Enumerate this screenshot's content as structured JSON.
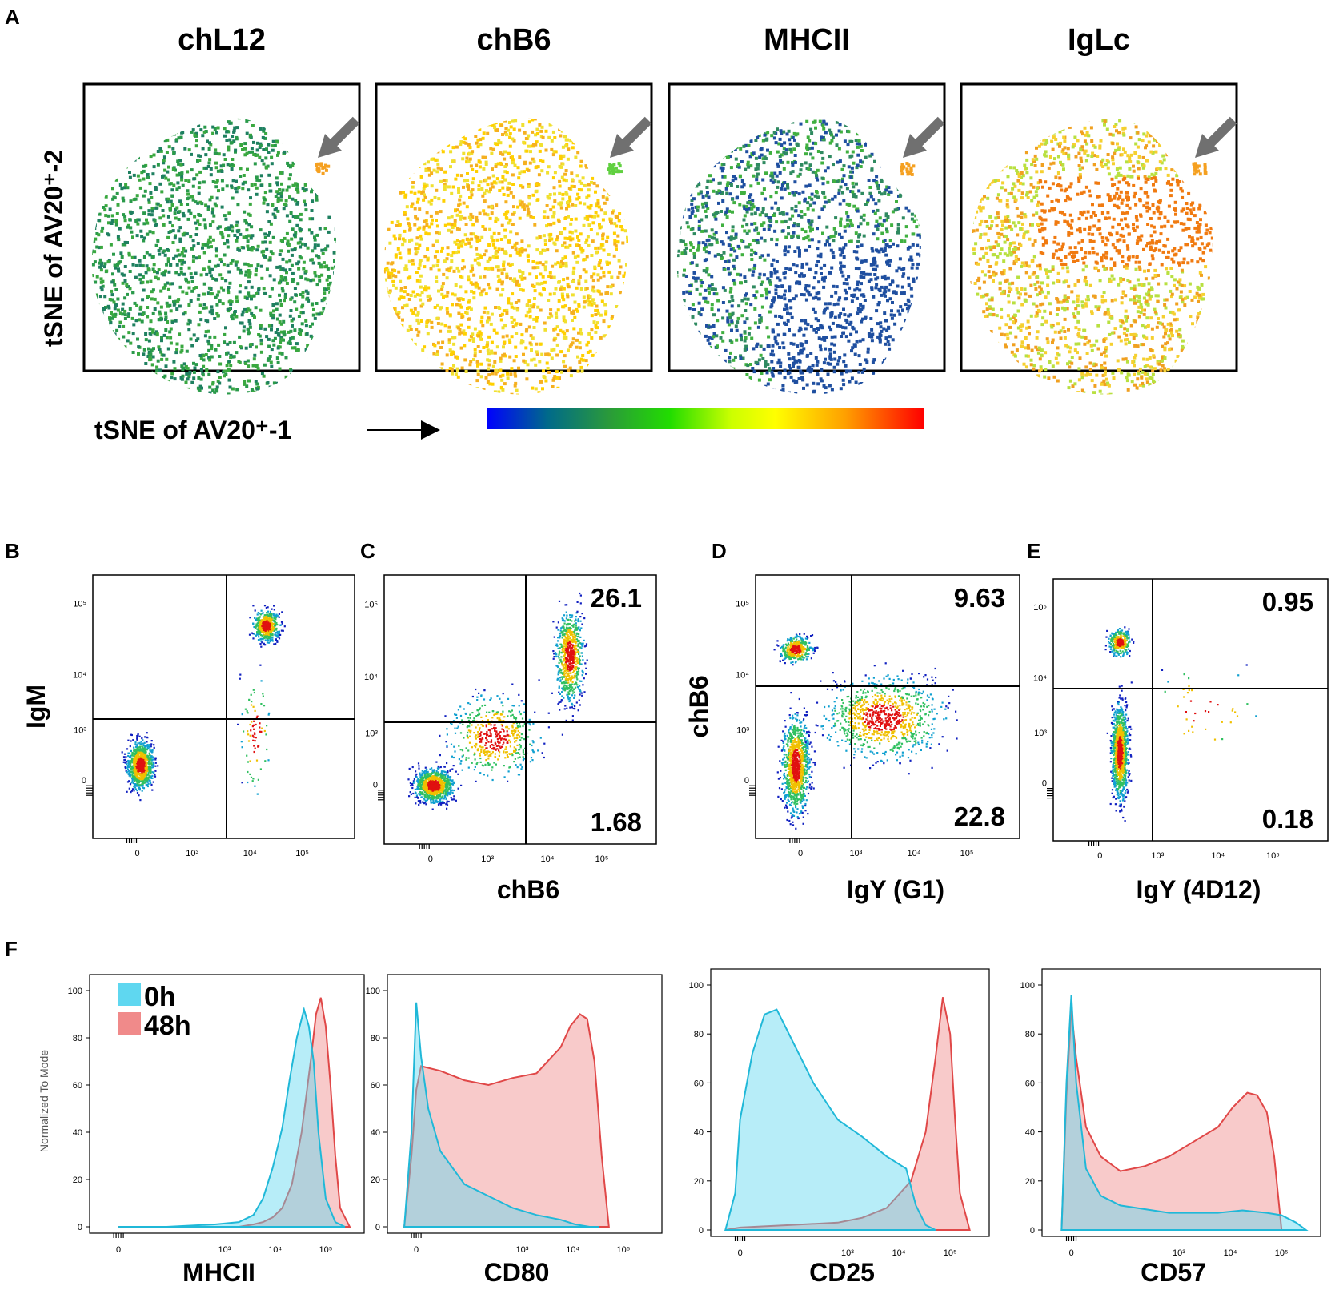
{
  "colors": {
    "gradient": [
      "#0000ff",
      "#006a8a",
      "#2a9a3a",
      "#22dd00",
      "#ccff00",
      "#ffff00",
      "#ffa000",
      "#ff0000"
    ],
    "arrow": "#707070",
    "hist_0h": "#5fd7f0",
    "hist_48h": "#f08a8a"
  },
  "panel_labels": {
    "A": "A",
    "B": "B",
    "C": "C",
    "D": "D",
    "E": "E",
    "F": "F"
  },
  "panelA": {
    "titles": [
      "chL12",
      "chB6",
      "MHCII",
      "IgLc"
    ],
    "ylabel": "tSNE of AV20⁺-2",
    "xlabel": "tSNE of AV20⁺-1",
    "colorbar": "blue to red"
  },
  "flow": {
    "ticks_x": [
      "0",
      "10³",
      "10⁴",
      "10⁵"
    ],
    "ticks_y": [
      "0",
      "10³",
      "10⁴",
      "10⁵"
    ],
    "plots": [
      {
        "id": "B",
        "xlabel": "",
        "ylabel": "IgM",
        "q_ur": "",
        "q_lr": ""
      },
      {
        "id": "C",
        "xlabel": "chB6",
        "ylabel": "",
        "q_ur": "26.1",
        "q_lr": "1.68"
      },
      {
        "id": "D",
        "xlabel": "IgY (G1)",
        "ylabel": "chB6",
        "q_ur": "9.63",
        "q_lr": "22.8"
      },
      {
        "id": "E",
        "xlabel": "IgY (4D12)",
        "ylabel": "",
        "q_ur": "0.95",
        "q_lr": "0.18"
      }
    ]
  },
  "chart_data": [
    {
      "type": "area",
      "title": "MHCII",
      "xlabel": "MHCII",
      "ylabel": "Normalized To Mode",
      "ylim": [
        0,
        100
      ],
      "x_ticks": [
        "0",
        "10³",
        "10⁴",
        "10⁵"
      ],
      "y_ticks": [
        "0",
        "20",
        "40",
        "60",
        "80",
        "100"
      ],
      "legend": [
        "0h",
        "48h"
      ],
      "series": [
        {
          "name": "0h",
          "x": [
            0,
            1,
            2,
            2.5,
            2.8,
            3.0,
            3.2,
            3.4,
            3.55,
            3.7,
            3.85,
            3.95,
            4.05,
            4.15,
            4.3,
            4.5,
            4.7
          ],
          "values": [
            0,
            0,
            1,
            2,
            5,
            12,
            25,
            42,
            62,
            80,
            92,
            85,
            70,
            40,
            12,
            2,
            0
          ]
        },
        {
          "name": "48h",
          "x": [
            0,
            1,
            2,
            2.5,
            2.8,
            3.0,
            3.2,
            3.4,
            3.6,
            3.8,
            4.0,
            4.1,
            4.2,
            4.3,
            4.4,
            4.5,
            4.6,
            4.8
          ],
          "values": [
            0,
            0,
            0,
            0,
            1,
            2,
            4,
            8,
            18,
            40,
            72,
            90,
            97,
            85,
            60,
            30,
            8,
            0
          ]
        }
      ]
    },
    {
      "type": "area",
      "title": "CD80",
      "xlabel": "CD80",
      "ylabel": "",
      "ylim": [
        0,
        100
      ],
      "x_ticks": [
        "0",
        "10³",
        "10⁴",
        "10⁵"
      ],
      "y_ticks": [
        "0",
        "20",
        "40",
        "60",
        "80",
        "100"
      ],
      "series": [
        {
          "name": "0h",
          "x": [
            -0.25,
            -0.1,
            0,
            0.1,
            0.25,
            0.5,
            1,
            2,
            2.5,
            3,
            3.3,
            3.6,
            3.8
          ],
          "values": [
            0,
            40,
            95,
            72,
            50,
            32,
            18,
            8,
            5,
            3,
            1,
            0,
            0
          ]
        },
        {
          "name": "48h",
          "x": [
            -0.25,
            -0.1,
            0,
            0.1,
            0.5,
            1,
            1.5,
            2,
            2.5,
            3,
            3.2,
            3.4,
            3.55,
            3.7,
            3.85,
            4.0
          ],
          "values": [
            0,
            30,
            58,
            68,
            66,
            62,
            60,
            63,
            65,
            76,
            85,
            90,
            88,
            70,
            30,
            0
          ]
        }
      ]
    },
    {
      "type": "area",
      "title": "CD25",
      "xlabel": "CD25",
      "ylabel": "",
      "ylim": [
        0,
        100
      ],
      "x_ticks": [
        "0",
        "10³",
        "10⁴",
        "10⁵"
      ],
      "y_ticks": [
        "0",
        "20",
        "40",
        "60",
        "80",
        "100"
      ],
      "series": [
        {
          "name": "0h",
          "x": [
            -0.3,
            -0.1,
            0,
            0.25,
            0.5,
            0.75,
            1,
            1.5,
            2,
            2.5,
            3,
            3.4,
            3.6,
            3.8,
            4.0
          ],
          "values": [
            0,
            15,
            45,
            72,
            88,
            90,
            80,
            60,
            45,
            38,
            30,
            25,
            10,
            2,
            0
          ]
        },
        {
          "name": "48h",
          "x": [
            -0.3,
            0,
            1,
            2,
            2.5,
            3,
            3.5,
            3.8,
            4.0,
            4.15,
            4.3,
            4.4,
            4.5,
            4.7
          ],
          "values": [
            0,
            1,
            2,
            3,
            5,
            9,
            20,
            40,
            70,
            95,
            80,
            45,
            15,
            0
          ]
        }
      ]
    },
    {
      "type": "area",
      "title": "CD57",
      "xlabel": "CD57",
      "ylabel": "",
      "ylim": [
        0,
        100
      ],
      "x_ticks": [
        "0",
        "10³",
        "10⁴",
        "10⁵"
      ],
      "y_ticks": [
        "0",
        "20",
        "40",
        "60",
        "80",
        "100"
      ],
      "series": [
        {
          "name": "0h",
          "x": [
            -0.2,
            -0.1,
            0,
            0.1,
            0.3,
            0.6,
            1,
            2,
            3,
            3.5,
            4,
            4.3,
            4.6,
            4.8
          ],
          "values": [
            0,
            60,
            96,
            60,
            25,
            14,
            10,
            7,
            7,
            8,
            7,
            6,
            3,
            0
          ]
        },
        {
          "name": "48h",
          "x": [
            -0.2,
            -0.1,
            0,
            0.1,
            0.3,
            0.6,
            1,
            1.5,
            2,
            2.5,
            3,
            3.3,
            3.6,
            3.8,
            4.0,
            4.15,
            4.3
          ],
          "values": [
            0,
            55,
            90,
            70,
            42,
            30,
            24,
            26,
            30,
            36,
            42,
            50,
            56,
            55,
            48,
            30,
            0
          ]
        }
      ]
    }
  ]
}
